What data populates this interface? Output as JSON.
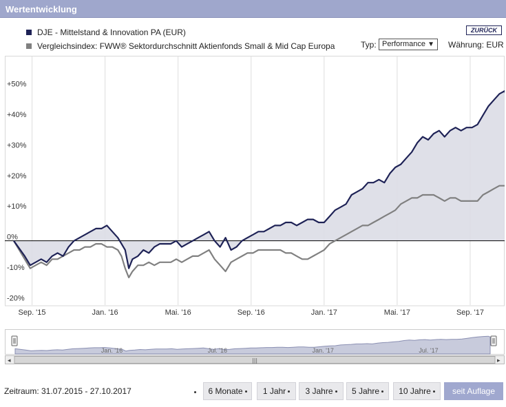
{
  "header": {
    "title": "Wertentwicklung"
  },
  "legend": {
    "items": [
      {
        "label": "DJE - Mittelstand & Innovation PA (EUR)",
        "color": "#1e2256"
      },
      {
        "label": "Vergleichsindex: FWW® Sektordurchschnitt Aktienfonds Small & Mid Cap Europa",
        "color": "#808080"
      }
    ]
  },
  "controls": {
    "back_label": "ZURÜCK",
    "typ_label": "Typ:",
    "typ_value": "Performance",
    "currency_label": "Währung: EUR"
  },
  "footer": {
    "zeitraum": "Zeitraum: 31.07.2015 - 27.10.2017",
    "ranges": [
      "6 Monate",
      "1 Jahr",
      "3 Jahre",
      "5 Jahre",
      "10 Jahre",
      "seit Auflage"
    ],
    "active_range": "seit Auflage"
  },
  "navigator": {
    "labels": [
      "Jan. '16",
      "Jul. '16",
      "Jan. '17",
      "Jul. '17"
    ]
  },
  "chart_data": {
    "type": "area",
    "xlabel": "",
    "ylabel": "",
    "x_ticks": [
      "Sep. '15",
      "Jan. '16",
      "Mai. '16",
      "Sep. '16",
      "Jan. '17",
      "Mai. '17",
      "Sep. '17"
    ],
    "y_ticks": [
      "-20%",
      "-10%",
      "0%",
      "+10%",
      "+20%",
      "+30%",
      "+40%",
      "+50%"
    ],
    "ylim": [
      -21,
      60
    ],
    "x_range_months": [
      0,
      27
    ],
    "grid": "vertical",
    "series": [
      {
        "name": "DJE - Mittelstand & Innovation PA (EUR)",
        "color": "#1e2256",
        "points": [
          [
            0,
            0
          ],
          [
            0.6,
            -5
          ],
          [
            0.9,
            -8
          ],
          [
            1.2,
            -7
          ],
          [
            1.5,
            -6
          ],
          [
            1.8,
            -7
          ],
          [
            2.1,
            -5
          ],
          [
            2.4,
            -4
          ],
          [
            2.7,
            -5
          ],
          [
            3.0,
            -2
          ],
          [
            3.3,
            0
          ],
          [
            3.6,
            1
          ],
          [
            3.9,
            2
          ],
          [
            4.2,
            3
          ],
          [
            4.5,
            4
          ],
          [
            4.8,
            4
          ],
          [
            5.1,
            5
          ],
          [
            5.4,
            3
          ],
          [
            5.7,
            1
          ],
          [
            5.9,
            -1
          ],
          [
            6.1,
            -3
          ],
          [
            6.3,
            -9
          ],
          [
            6.5,
            -6
          ],
          [
            6.8,
            -5
          ],
          [
            7.1,
            -3
          ],
          [
            7.4,
            -4
          ],
          [
            7.7,
            -2
          ],
          [
            8.0,
            -1
          ],
          [
            8.3,
            -1
          ],
          [
            8.6,
            -1
          ],
          [
            8.9,
            0
          ],
          [
            9.2,
            -2
          ],
          [
            9.5,
            -1
          ],
          [
            9.8,
            0
          ],
          [
            10.1,
            1
          ],
          [
            10.4,
            2
          ],
          [
            10.7,
            3
          ],
          [
            11.0,
            0
          ],
          [
            11.3,
            -2
          ],
          [
            11.6,
            1
          ],
          [
            11.9,
            -3
          ],
          [
            12.2,
            -2
          ],
          [
            12.5,
            0
          ],
          [
            12.8,
            1
          ],
          [
            13.1,
            2
          ],
          [
            13.4,
            3
          ],
          [
            13.7,
            3
          ],
          [
            14.0,
            4
          ],
          [
            14.3,
            5
          ],
          [
            14.6,
            5
          ],
          [
            14.9,
            6
          ],
          [
            15.2,
            6
          ],
          [
            15.5,
            5
          ],
          [
            15.8,
            6
          ],
          [
            16.1,
            7
          ],
          [
            16.4,
            7
          ],
          [
            16.7,
            6
          ],
          [
            17.0,
            6
          ],
          [
            17.3,
            8
          ],
          [
            17.6,
            10
          ],
          [
            17.9,
            11
          ],
          [
            18.2,
            12
          ],
          [
            18.5,
            15
          ],
          [
            18.8,
            16
          ],
          [
            19.1,
            17
          ],
          [
            19.4,
            19
          ],
          [
            19.7,
            19
          ],
          [
            20.0,
            20
          ],
          [
            20.3,
            19
          ],
          [
            20.6,
            22
          ],
          [
            20.9,
            24
          ],
          [
            21.2,
            25
          ],
          [
            21.5,
            27
          ],
          [
            21.8,
            29
          ],
          [
            22.1,
            32
          ],
          [
            22.4,
            34
          ],
          [
            22.7,
            33
          ],
          [
            23.0,
            35
          ],
          [
            23.3,
            36
          ],
          [
            23.6,
            34
          ],
          [
            23.9,
            36
          ],
          [
            24.2,
            37
          ],
          [
            24.5,
            36
          ],
          [
            24.8,
            37
          ],
          [
            25.1,
            37
          ],
          [
            25.4,
            38
          ],
          [
            25.7,
            41
          ],
          [
            26.0,
            44
          ],
          [
            26.3,
            46
          ],
          [
            26.6,
            48
          ],
          [
            26.9,
            49
          ],
          [
            27.0,
            46
          ]
        ]
      },
      {
        "name": "Vergleichsindex: FWW® Sektordurchschnitt Aktienfonds Small & Mid Cap Europa",
        "color": "#808080",
        "points": [
          [
            0,
            0
          ],
          [
            0.6,
            -6
          ],
          [
            0.9,
            -9
          ],
          [
            1.2,
            -8
          ],
          [
            1.5,
            -7
          ],
          [
            1.8,
            -8
          ],
          [
            2.1,
            -6
          ],
          [
            2.4,
            -6
          ],
          [
            2.7,
            -5
          ],
          [
            3.0,
            -4
          ],
          [
            3.3,
            -3
          ],
          [
            3.6,
            -3
          ],
          [
            3.9,
            -2
          ],
          [
            4.2,
            -2
          ],
          [
            4.5,
            -1
          ],
          [
            4.8,
            -1
          ],
          [
            5.1,
            -2
          ],
          [
            5.4,
            -2
          ],
          [
            5.7,
            -3
          ],
          [
            5.9,
            -5
          ],
          [
            6.1,
            -9
          ],
          [
            6.3,
            -12
          ],
          [
            6.5,
            -10
          ],
          [
            6.8,
            -8
          ],
          [
            7.1,
            -8
          ],
          [
            7.4,
            -7
          ],
          [
            7.7,
            -8
          ],
          [
            8.0,
            -7
          ],
          [
            8.3,
            -7
          ],
          [
            8.6,
            -7
          ],
          [
            8.9,
            -6
          ],
          [
            9.2,
            -7
          ],
          [
            9.5,
            -6
          ],
          [
            9.8,
            -5
          ],
          [
            10.1,
            -5
          ],
          [
            10.4,
            -4
          ],
          [
            10.7,
            -3
          ],
          [
            11.0,
            -6
          ],
          [
            11.3,
            -8
          ],
          [
            11.6,
            -10
          ],
          [
            11.9,
            -7
          ],
          [
            12.2,
            -6
          ],
          [
            12.5,
            -5
          ],
          [
            12.8,
            -4
          ],
          [
            13.1,
            -4
          ],
          [
            13.4,
            -3
          ],
          [
            13.7,
            -3
          ],
          [
            14.0,
            -3
          ],
          [
            14.3,
            -3
          ],
          [
            14.6,
            -3
          ],
          [
            14.9,
            -4
          ],
          [
            15.2,
            -4
          ],
          [
            15.5,
            -5
          ],
          [
            15.8,
            -6
          ],
          [
            16.1,
            -6
          ],
          [
            16.4,
            -5
          ],
          [
            16.7,
            -4
          ],
          [
            17.0,
            -3
          ],
          [
            17.3,
            -1
          ],
          [
            17.6,
            0
          ],
          [
            17.9,
            1
          ],
          [
            18.2,
            2
          ],
          [
            18.5,
            3
          ],
          [
            18.8,
            4
          ],
          [
            19.1,
            5
          ],
          [
            19.4,
            5
          ],
          [
            19.7,
            6
          ],
          [
            20.0,
            7
          ],
          [
            20.3,
            8
          ],
          [
            20.6,
            9
          ],
          [
            20.9,
            10
          ],
          [
            21.2,
            12
          ],
          [
            21.5,
            13
          ],
          [
            21.8,
            14
          ],
          [
            22.1,
            14
          ],
          [
            22.4,
            15
          ],
          [
            22.7,
            15
          ],
          [
            23.0,
            15
          ],
          [
            23.3,
            14
          ],
          [
            23.6,
            13
          ],
          [
            23.9,
            14
          ],
          [
            24.2,
            14
          ],
          [
            24.5,
            13
          ],
          [
            24.8,
            13
          ],
          [
            25.1,
            13
          ],
          [
            25.4,
            13
          ],
          [
            25.7,
            15
          ],
          [
            26.0,
            16
          ],
          [
            26.3,
            17
          ],
          [
            26.6,
            18
          ],
          [
            26.9,
            18
          ],
          [
            27.0,
            18
          ]
        ]
      }
    ]
  }
}
